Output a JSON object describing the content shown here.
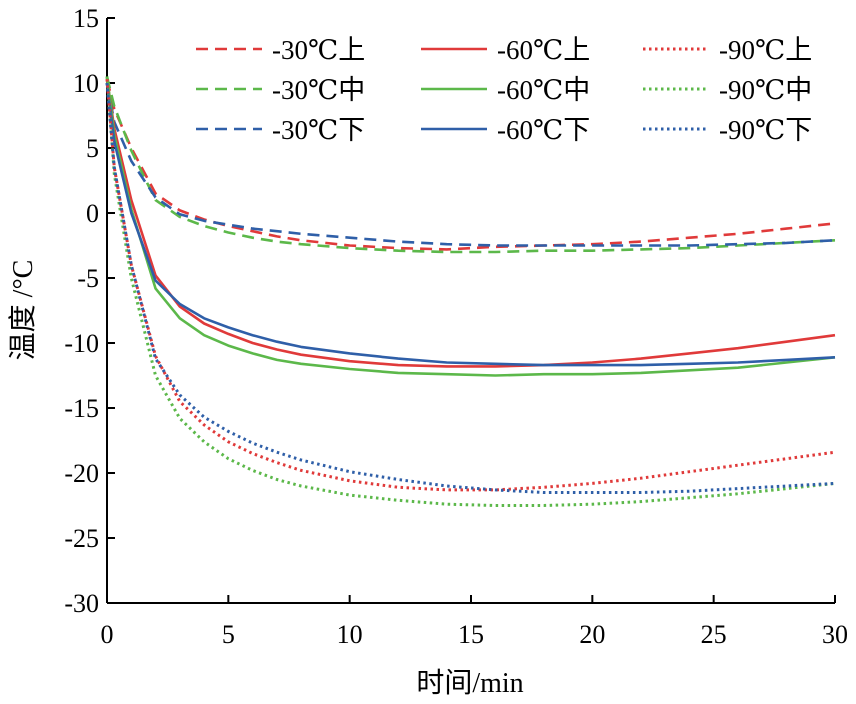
{
  "chart_data": {
    "type": "line",
    "title": "",
    "xlabel": "时间/min",
    "ylabel": "温度 /°C",
    "xlim": [
      0,
      30
    ],
    "ylim": [
      -30,
      15
    ],
    "xticks": [
      0,
      5,
      10,
      15,
      20,
      25,
      30
    ],
    "yticks": [
      15,
      10,
      5,
      0,
      -5,
      -10,
      -15,
      -20,
      -25,
      -30
    ],
    "grid": false,
    "legend_position": "top-right",
    "colors": {
      "red": "#e03a3a",
      "green": "#5cb84a",
      "blue": "#2f5fa8"
    },
    "x": [
      0,
      0.3,
      1,
      2,
      3,
      4,
      5,
      6,
      7,
      8,
      10,
      12,
      14,
      16,
      18,
      20,
      22,
      24,
      26,
      28,
      30
    ],
    "series": [
      {
        "name": "-30℃上",
        "color": "#e03a3a",
        "dash": "dashed",
        "values": [
          10.3,
          8.0,
          5.0,
          1.5,
          0.2,
          -0.5,
          -1.0,
          -1.4,
          -1.8,
          -2.1,
          -2.5,
          -2.7,
          -2.8,
          -2.6,
          -2.5,
          -2.4,
          -2.2,
          -1.9,
          -1.6,
          -1.2,
          -0.8
        ]
      },
      {
        "name": "-30℃中",
        "color": "#5cb84a",
        "dash": "dashed",
        "values": [
          10.5,
          8.2,
          4.8,
          1.0,
          -0.3,
          -1.0,
          -1.5,
          -1.9,
          -2.2,
          -2.4,
          -2.7,
          -2.9,
          -3.0,
          -3.0,
          -2.9,
          -2.9,
          -2.8,
          -2.7,
          -2.5,
          -2.3,
          -2.1
        ]
      },
      {
        "name": "-30℃下",
        "color": "#2f5fa8",
        "dash": "dashed",
        "values": [
          10.0,
          7.0,
          4.0,
          1.2,
          -0.1,
          -0.6,
          -0.9,
          -1.2,
          -1.4,
          -1.6,
          -1.9,
          -2.2,
          -2.4,
          -2.5,
          -2.5,
          -2.5,
          -2.5,
          -2.5,
          -2.4,
          -2.3,
          -2.1
        ]
      },
      {
        "name": "-60℃上",
        "color": "#e03a3a",
        "dash": "solid",
        "values": [
          10.3,
          6.5,
          1.0,
          -4.8,
          -7.2,
          -8.5,
          -9.3,
          -10.0,
          -10.5,
          -10.9,
          -11.4,
          -11.7,
          -11.8,
          -11.8,
          -11.7,
          -11.5,
          -11.2,
          -10.8,
          -10.4,
          -9.9,
          -9.4
        ]
      },
      {
        "name": "-60℃中",
        "color": "#5cb84a",
        "dash": "solid",
        "values": [
          10.5,
          6.0,
          0.3,
          -5.8,
          -8.1,
          -9.4,
          -10.2,
          -10.8,
          -11.3,
          -11.6,
          -12.0,
          -12.3,
          -12.4,
          -12.5,
          -12.4,
          -12.4,
          -12.3,
          -12.1,
          -11.9,
          -11.5,
          -11.1
        ]
      },
      {
        "name": "-60℃下",
        "color": "#2f5fa8",
        "dash": "solid",
        "values": [
          10.0,
          5.5,
          0.0,
          -5.2,
          -7.0,
          -8.1,
          -8.8,
          -9.4,
          -9.9,
          -10.3,
          -10.8,
          -11.2,
          -11.5,
          -11.6,
          -11.7,
          -11.7,
          -11.7,
          -11.6,
          -11.5,
          -11.3,
          -11.1
        ]
      },
      {
        "name": "-90℃上",
        "color": "#e03a3a",
        "dash": "dotted",
        "values": [
          10.3,
          3.5,
          -4.0,
          -11.0,
          -14.5,
          -16.3,
          -17.6,
          -18.5,
          -19.2,
          -19.8,
          -20.6,
          -21.1,
          -21.3,
          -21.3,
          -21.1,
          -20.8,
          -20.4,
          -19.9,
          -19.4,
          -18.9,
          -18.4
        ]
      },
      {
        "name": "-90℃中",
        "color": "#5cb84a",
        "dash": "dotted",
        "values": [
          10.5,
          3.0,
          -5.0,
          -12.5,
          -15.8,
          -17.6,
          -18.9,
          -19.8,
          -20.5,
          -21.0,
          -21.7,
          -22.1,
          -22.4,
          -22.5,
          -22.5,
          -22.4,
          -22.2,
          -21.9,
          -21.6,
          -21.2,
          -20.8
        ]
      },
      {
        "name": "-90℃下",
        "color": "#2f5fa8",
        "dash": "dotted",
        "values": [
          10.0,
          3.5,
          -4.0,
          -11.2,
          -14.0,
          -15.7,
          -16.8,
          -17.7,
          -18.4,
          -19.0,
          -19.9,
          -20.5,
          -21.0,
          -21.3,
          -21.5,
          -21.5,
          -21.5,
          -21.4,
          -21.2,
          -21.0,
          -20.8
        ]
      }
    ]
  }
}
